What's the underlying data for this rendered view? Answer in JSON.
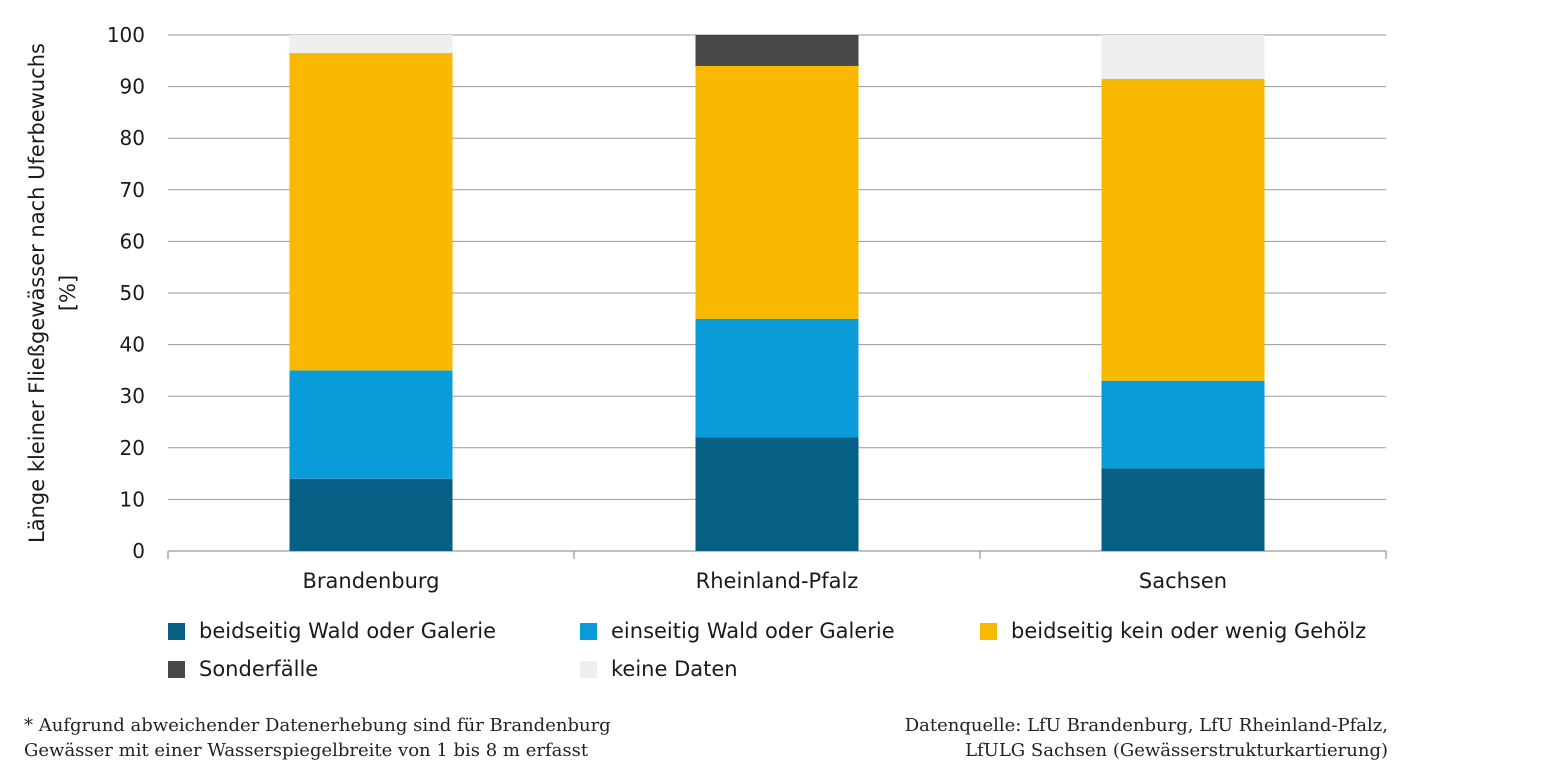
{
  "chart_data": {
    "type": "bar",
    "stacked": true,
    "categories": [
      "Brandenburg",
      "Rheinland-Pfalz",
      "Sachsen"
    ],
    "series": [
      {
        "name": "beidseitig Wald oder Galerie",
        "color": "#065f84",
        "values": [
          14,
          22,
          16
        ]
      },
      {
        "name": "einseitig Wald oder Galerie",
        "color": "#0a9bd9",
        "values": [
          21,
          23,
          17
        ]
      },
      {
        "name": "beidseitig kein oder wenig Gehölz",
        "color": "#f9b900",
        "values": [
          61.5,
          49,
          58.5
        ]
      },
      {
        "name": "Sonderfälle",
        "color": "#474747",
        "values": [
          0,
          6,
          0
        ]
      },
      {
        "name": "keine Daten",
        "color": "#efefef",
        "values": [
          3.5,
          0,
          8.5
        ]
      }
    ],
    "ylabel_line1": "Länge kleiner Fließgewässer nach Uferbewuchs",
    "ylabel_line2": "[%]",
    "ylim": [
      0,
      100
    ],
    "yticks": [
      0,
      10,
      20,
      30,
      40,
      50,
      60,
      70,
      80,
      90,
      100
    ],
    "grid": true,
    "legend_position": "bottom"
  },
  "footnote": {
    "line1": "* Aufgrund abweichender Datenerhebung sind für Brandenburg",
    "line2": "Gewässer mit einer Wasserspiegelbreite von 1 bis 8 m erfasst"
  },
  "source": {
    "line1": "Datenquelle: LfU Brandenburg, LfU Rheinland-Pfalz,",
    "line2": "LfULG Sachsen (Gewässerstrukturkartierung)"
  },
  "colors": {
    "grid": "#9a9a9a",
    "axis": "#9a9a9a",
    "text": "#1a1a1a"
  }
}
